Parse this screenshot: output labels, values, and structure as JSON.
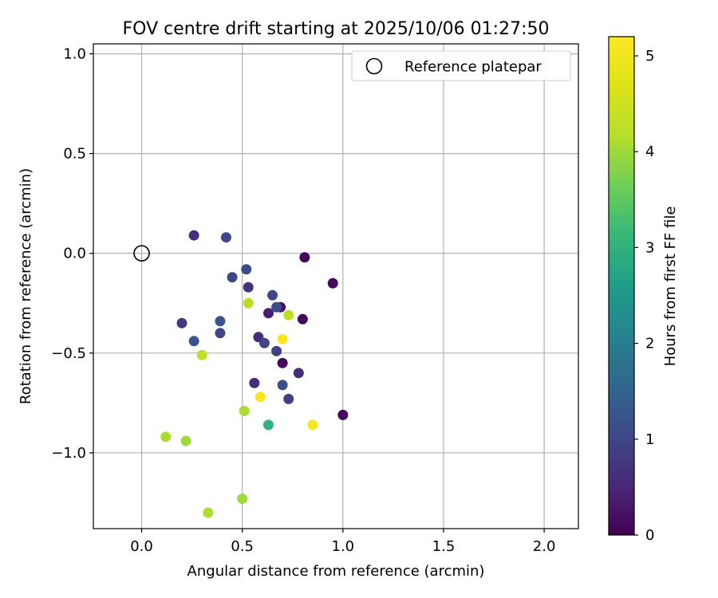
{
  "chart_data": {
    "type": "scatter",
    "title": "FOV centre drift starting at 2025/10/06 01:27:50",
    "xlabel": "Angular distance from reference (arcmin)",
    "ylabel": "Rotation from reference (arcmin)",
    "xlim": [
      -0.24,
      2.17
    ],
    "ylim": [
      -1.38,
      1.05
    ],
    "xticks": [
      0.0,
      0.5,
      1.0,
      1.5,
      2.0
    ],
    "xtick_labels": [
      "0.0",
      "0.5",
      "1.0",
      "1.5",
      "2.0"
    ],
    "yticks": [
      -1.0,
      -0.5,
      0.0,
      0.5,
      1.0
    ],
    "ytick_labels": [
      "−1.0",
      "−0.5",
      "0.0",
      "0.5",
      "1.0"
    ],
    "grid": true,
    "legend": {
      "position": "top-right",
      "entries": [
        "Reference platepar"
      ]
    },
    "reference_point": {
      "x": 0.0,
      "y": 0.0,
      "label": "Reference platepar"
    },
    "colorbar": {
      "label": "Hours from first FF file",
      "range": [
        0,
        5.2
      ],
      "ticks": [
        0,
        1,
        2,
        3,
        4,
        5
      ],
      "tick_labels": [
        "0",
        "1",
        "2",
        "3",
        "4",
        "5"
      ],
      "colormap": "viridis"
    },
    "points": [
      {
        "x": 0.26,
        "y": 0.09,
        "h": 0.6
      },
      {
        "x": 0.42,
        "y": 0.08,
        "h": 1.0
      },
      {
        "x": 0.81,
        "y": -0.02,
        "h": 0.1
      },
      {
        "x": 0.52,
        "y": -0.08,
        "h": 1.1
      },
      {
        "x": 0.45,
        "y": -0.12,
        "h": 1.0
      },
      {
        "x": 0.95,
        "y": -0.15,
        "h": 0.1
      },
      {
        "x": 0.53,
        "y": -0.17,
        "h": 0.7
      },
      {
        "x": 0.65,
        "y": -0.21,
        "h": 1.0
      },
      {
        "x": 0.53,
        "y": -0.25,
        "h": 4.2
      },
      {
        "x": 0.69,
        "y": -0.27,
        "h": 0.2
      },
      {
        "x": 0.67,
        "y": -0.27,
        "h": 1.1
      },
      {
        "x": 0.63,
        "y": -0.3,
        "h": 0.4
      },
      {
        "x": 0.73,
        "y": -0.31,
        "h": 4.3
      },
      {
        "x": 0.8,
        "y": -0.33,
        "h": 0.1
      },
      {
        "x": 0.2,
        "y": -0.35,
        "h": 0.8
      },
      {
        "x": 0.39,
        "y": -0.34,
        "h": 1.2
      },
      {
        "x": 0.39,
        "y": -0.4,
        "h": 1.0
      },
      {
        "x": 0.58,
        "y": -0.42,
        "h": 0.6
      },
      {
        "x": 0.7,
        "y": -0.43,
        "h": 5.1
      },
      {
        "x": 0.26,
        "y": -0.44,
        "h": 1.2
      },
      {
        "x": 0.61,
        "y": -0.45,
        "h": 1.0
      },
      {
        "x": 0.67,
        "y": -0.49,
        "h": 0.9
      },
      {
        "x": 0.3,
        "y": -0.51,
        "h": 4.3
      },
      {
        "x": 0.7,
        "y": -0.55,
        "h": 0.1
      },
      {
        "x": 0.78,
        "y": -0.6,
        "h": 0.6
      },
      {
        "x": 0.56,
        "y": -0.65,
        "h": 0.6
      },
      {
        "x": 0.7,
        "y": -0.66,
        "h": 1.1
      },
      {
        "x": 0.59,
        "y": -0.72,
        "h": 5.1
      },
      {
        "x": 0.73,
        "y": -0.73,
        "h": 0.9
      },
      {
        "x": 0.51,
        "y": -0.79,
        "h": 4.1
      },
      {
        "x": 1.0,
        "y": -0.81,
        "h": 0.1
      },
      {
        "x": 0.63,
        "y": -0.86,
        "h": 3.0
      },
      {
        "x": 0.85,
        "y": -0.86,
        "h": 5.1
      },
      {
        "x": 0.12,
        "y": -0.92,
        "h": 4.1
      },
      {
        "x": 0.22,
        "y": -0.94,
        "h": 4.0
      },
      {
        "x": 0.5,
        "y": -1.23,
        "h": 4.0
      },
      {
        "x": 0.33,
        "y": -1.3,
        "h": 4.1
      }
    ]
  }
}
